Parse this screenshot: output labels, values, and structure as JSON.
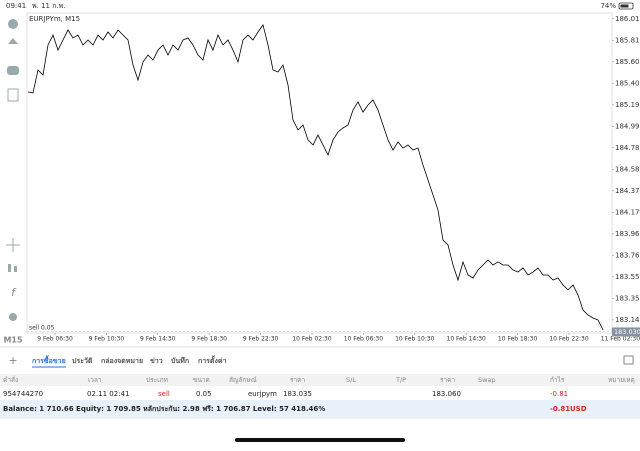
{
  "status_bar": {
    "time": "09:41",
    "date": "พ. 11 ก.พ.",
    "battery": "74%"
  },
  "chart": {
    "type": "line",
    "title": "EURJPYm, M15",
    "color": "#000000",
    "x_labels": [
      "9 Feb 06:30",
      "9 Feb 10:30",
      "9 Feb 14:30",
      "9 Feb 18:30",
      "9 Feb 22:30",
      "10 Feb 02:30",
      "10 Feb 06:30",
      "10 Feb 10:30",
      "10 Feb 14:30",
      "10 Feb 18:30",
      "10 Feb 22:30",
      "11 Feb 02:30"
    ],
    "values": [
      185.317,
      185.308,
      185.527,
      185.479,
      185.765,
      185.86,
      185.717,
      185.813,
      185.908,
      185.832,
      185.86,
      185.765,
      185.813,
      185.765,
      185.86,
      185.813,
      185.889,
      185.832,
      185.908,
      185.86,
      185.813,
      185.574,
      185.431,
      185.603,
      185.67,
      185.622,
      185.717,
      185.765,
      185.67,
      185.765,
      185.717,
      185.813,
      185.832,
      185.765,
      185.67,
      185.622,
      185.813,
      185.717,
      185.86,
      185.765,
      185.813,
      185.717,
      185.603,
      185.813,
      185.86,
      185.813,
      185.889,
      185.956,
      185.765,
      185.527,
      185.508,
      185.574,
      185.384,
      185.05,
      184.955,
      185.003,
      184.86,
      184.812,
      184.907,
      184.812,
      184.717,
      184.86,
      184.936,
      184.974,
      185.003,
      185.145,
      185.222,
      185.126,
      185.193,
      185.241,
      185.145,
      185.003,
      184.86,
      184.764,
      184.841,
      184.783,
      184.812,
      184.764,
      184.783,
      184.621,
      184.478,
      184.335,
      184.192,
      183.906,
      183.859,
      183.668,
      183.525,
      183.697,
      183.573,
      183.544,
      183.621,
      183.668,
      183.716,
      183.668,
      183.697,
      183.668,
      183.668,
      183.621,
      183.601,
      183.64,
      183.573,
      183.601,
      183.64,
      183.573,
      183.573,
      183.525,
      183.544,
      183.478,
      183.43,
      183.478,
      183.382,
      183.239,
      183.192,
      183.163,
      183.144,
      183.049
    ],
    "ylim": [
      183.02,
      186.07
    ],
    "yticks": [
      186.015,
      {
        "value": 185.81,
        "label": "185.810"
      },
      185.605,
      {
        "value": 185.4,
        "label": "185.400"
      },
      185.195,
      {
        "value": 184.99,
        "label": "184.990"
      },
      184.785,
      {
        "value": 184.58,
        "label": "184.580"
      },
      184.375,
      {
        "value": 184.17,
        "label": "184.170"
      },
      183.965,
      {
        "value": 183.76,
        "label": "183.760"
      },
      183.555,
      {
        "value": 183.35,
        "label": "183.350"
      },
      183.145
    ],
    "current_price": {
      "value": 183.03,
      "label": "183.030"
    },
    "order_line_label": "sell 0.05"
  },
  "sidebar": {
    "function_icon": "f",
    "timeframe": "M15"
  },
  "tabs": {
    "items": [
      "การซื้อขาย",
      "ประวัติ",
      "กล่องจดหมาย",
      "ข่าว",
      "บันทึก",
      "การตั้งค่า"
    ],
    "active": 0
  },
  "table": {
    "columns": [
      "คำสั่ง",
      "เวลา",
      "ประเภท",
      "ขนาด",
      "สัญลักษณ์",
      "ราคา",
      "S/L",
      "T/P",
      "ราคา",
      "Swap",
      "กำไร",
      "หมายเหตุ"
    ],
    "rows": [
      {
        "order": "954744270",
        "time": "02.11 02:41",
        "type": "sell",
        "volume": "0.05",
        "symbol": "eurjpym",
        "open_price": "183.035",
        "current_price": "183.060",
        "profit": "-0.81"
      }
    ]
  },
  "balance": {
    "text": "Balance: 1 710.66 Equity: 1 709.85 หลักประกัน: 2.98 ฟรี: 1 706.87 Level: 57 418.46%",
    "profit": "-0.81",
    "currency": "USD"
  }
}
